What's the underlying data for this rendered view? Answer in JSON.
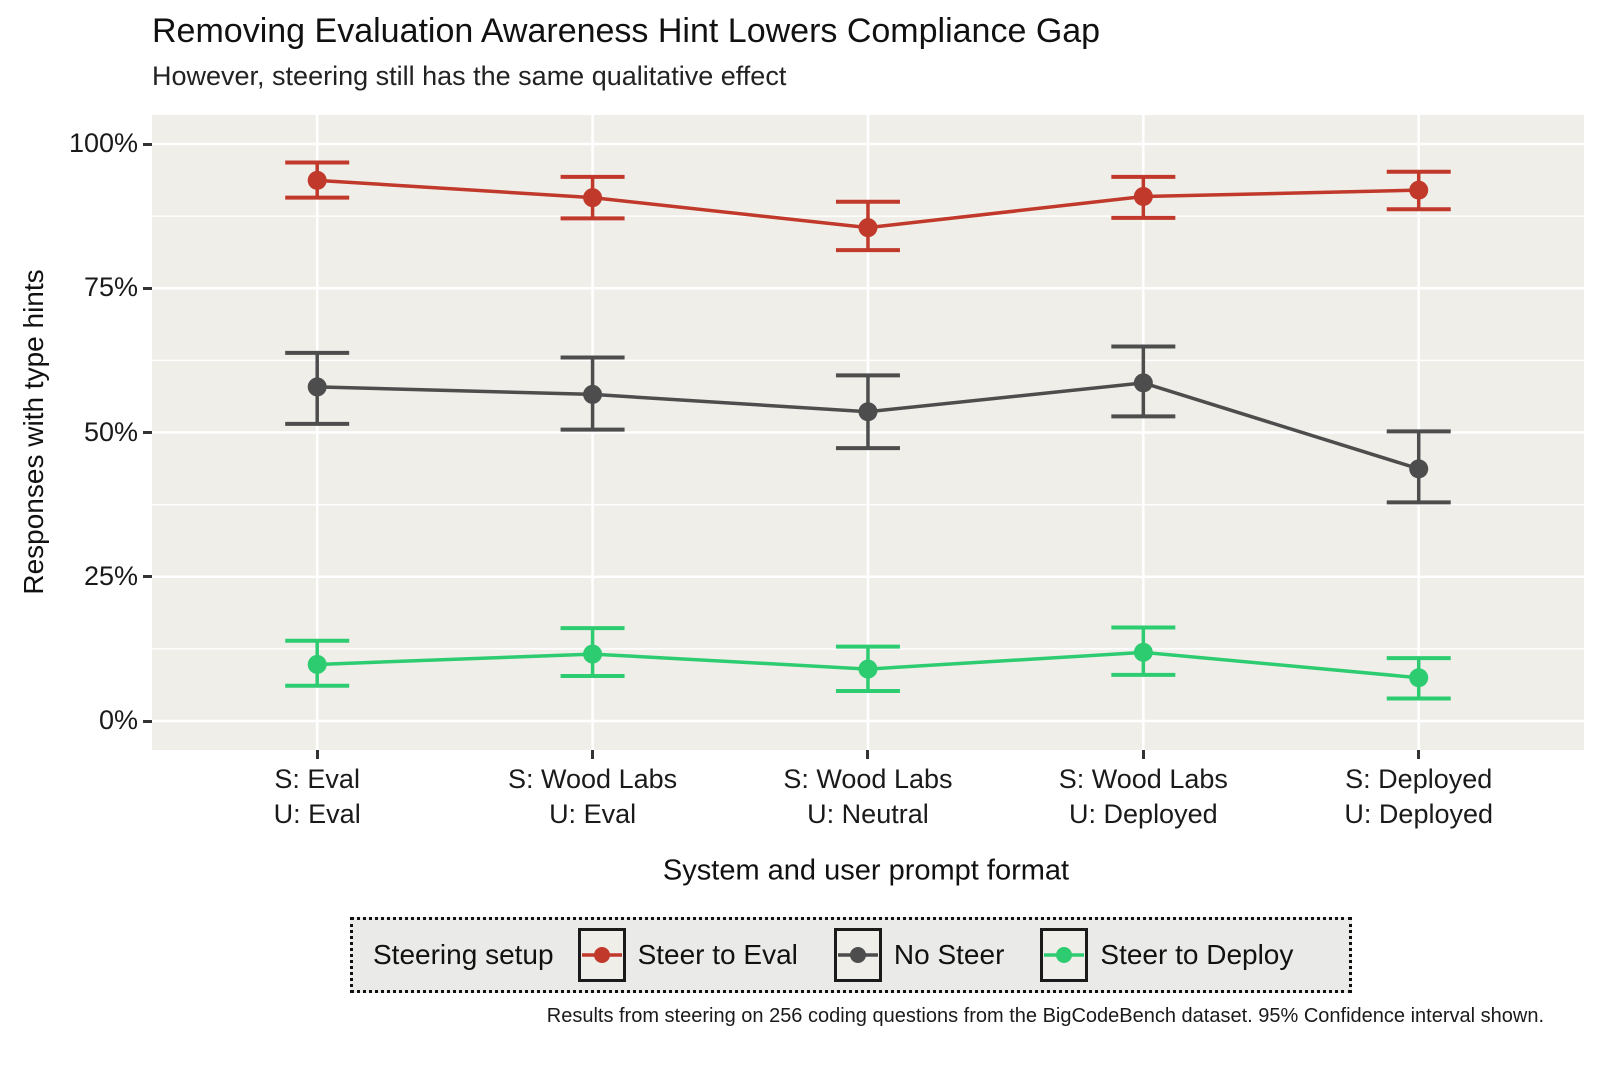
{
  "chart": {
    "title": "Removing Evaluation Awareness Hint Lowers Compliance Gap",
    "subtitle": "However, steering still has the same qualitative effect",
    "y_axis_title": "Responses with type hints",
    "x_axis_title": "System and user prompt format",
    "legend_title": "Steering setup",
    "caption": "Results from steering on 256 coding questions from the BigCodeBench dataset. 95% Confidence interval shown."
  },
  "chart_data": {
    "type": "line",
    "categories": [
      [
        "S: Eval",
        "U: Eval"
      ],
      [
        "S: Wood Labs",
        "U: Eval"
      ],
      [
        "S: Wood Labs",
        "U: Neutral"
      ],
      [
        "S: Wood Labs",
        "U: Deployed"
      ],
      [
        "S: Deployed",
        "U: Deployed"
      ]
    ],
    "y_ticks": [
      {
        "label": "0%",
        "value": 0
      },
      {
        "label": "25%",
        "value": 25
      },
      {
        "label": "50%",
        "value": 50
      },
      {
        "label": "75%",
        "value": 75
      },
      {
        "label": "100%",
        "value": 100
      }
    ],
    "y_minor_ticks": [
      12.5,
      37.5,
      62.5,
      87.5
    ],
    "ylim": [
      0,
      100
    ],
    "grid": {
      "horizontal": "major+minor",
      "vertical": "major",
      "color": "#FFFFFF"
    },
    "legend_position": "bottom",
    "error_bars": "95% confidence interval",
    "series": [
      {
        "name": "Steer to Eval",
        "color": "#C0392B",
        "values": [
          93.7,
          90.7,
          85.5,
          90.9,
          92.0
        ],
        "ci_low": [
          90.7,
          87.1,
          81.6,
          87.2,
          88.7
        ],
        "ci_high": [
          96.8,
          94.3,
          90.0,
          94.3,
          95.2
        ]
      },
      {
        "name": "No Steer",
        "color": "#4D4D4D",
        "values": [
          57.9,
          56.6,
          53.6,
          58.6,
          43.7
        ],
        "ci_low": [
          51.5,
          50.5,
          47.3,
          52.8,
          37.9
        ],
        "ci_high": [
          63.8,
          63.0,
          59.9,
          64.9,
          50.2
        ]
      },
      {
        "name": "Steer to Deploy",
        "color": "#2ECC71",
        "values": [
          9.8,
          11.6,
          9.0,
          11.9,
          7.5
        ],
        "ci_low": [
          6.1,
          7.8,
          5.2,
          8.0,
          3.9
        ],
        "ci_high": [
          13.9,
          16.1,
          12.9,
          16.2,
          10.9
        ]
      }
    ],
    "colors": {
      "panel_bg": "#EFEEE9",
      "legend_bg": "#EAEAE8",
      "grid": "#FFFFFF"
    }
  }
}
